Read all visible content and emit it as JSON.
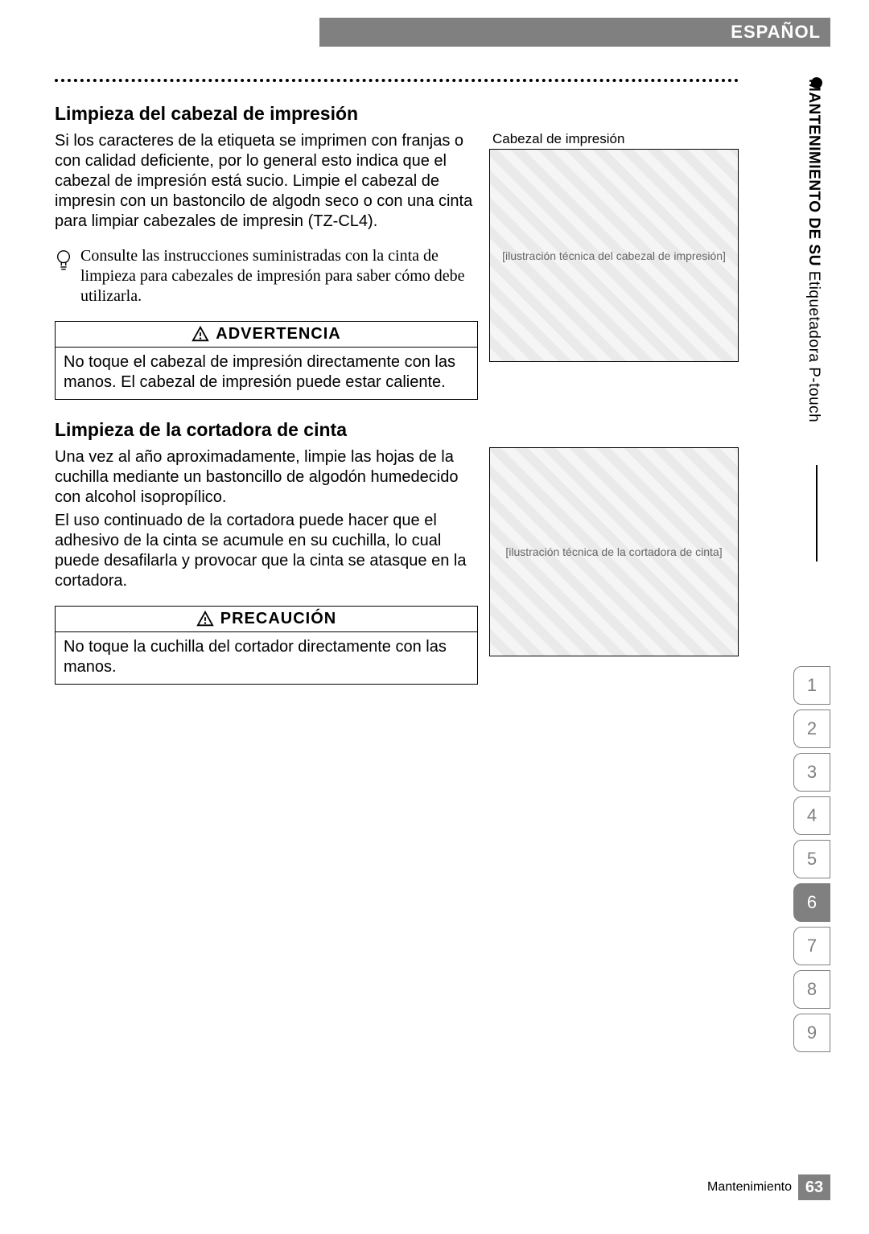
{
  "header": {
    "language": "ESPAÑOL"
  },
  "sidebar": {
    "section_title_bold": "MANTENIMIENTO DE SU",
    "section_title_rest": " Etiquetadora P-touch",
    "tabs": [
      "1",
      "2",
      "3",
      "4",
      "5",
      "6",
      "7",
      "8",
      "9"
    ],
    "active_tab_index": 5
  },
  "section1": {
    "title": "Limpieza del cabezal de impresión",
    "body": "Si los caracteres de la etiqueta se imprimen con franjas o con calidad deficiente, por lo general esto indica que el cabezal de impresión está sucio. Limpie el cabezal de impresin con un bastoncilo de algodn seco o con una cinta para limpiar cabezales de impresin (TZ-CL4).",
    "tip": "Consulte las instrucciones suministradas con la cinta de limpieza para cabezales de impresión para saber cómo debe utilizarla.",
    "fig_caption": "Cabezal de impresión",
    "fig_alt": "[ilustración técnica del cabezal de impresión]",
    "warn_title": "ADVERTENCIA",
    "warn_body": "No toque el cabezal de impresión directamente con las manos. El cabezal de impresión puede estar caliente."
  },
  "section2": {
    "title": "Limpieza de la cortadora de cinta",
    "body1": "Una vez al año aproximadamente, limpie las hojas de la cuchilla mediante un bastoncillo de algodón humedecido con alcohol isopropílico.",
    "body2": "El uso continuado de la cortadora puede hacer que el adhesivo de la cinta se acumule en su cuchilla, lo cual puede desafilarla y provocar que la cinta se atasque en la cortadora.",
    "fig_alt": "[ilustración técnica de la cortadora de cinta]",
    "caution_title": "PRECAUCIÓN",
    "caution_body": "No toque la cuchilla del cortador directamente con las manos."
  },
  "footer": {
    "label": "Mantenimiento",
    "page": "63"
  },
  "colors": {
    "bar": "#808080",
    "text": "#000000",
    "tab_border": "#808080"
  }
}
